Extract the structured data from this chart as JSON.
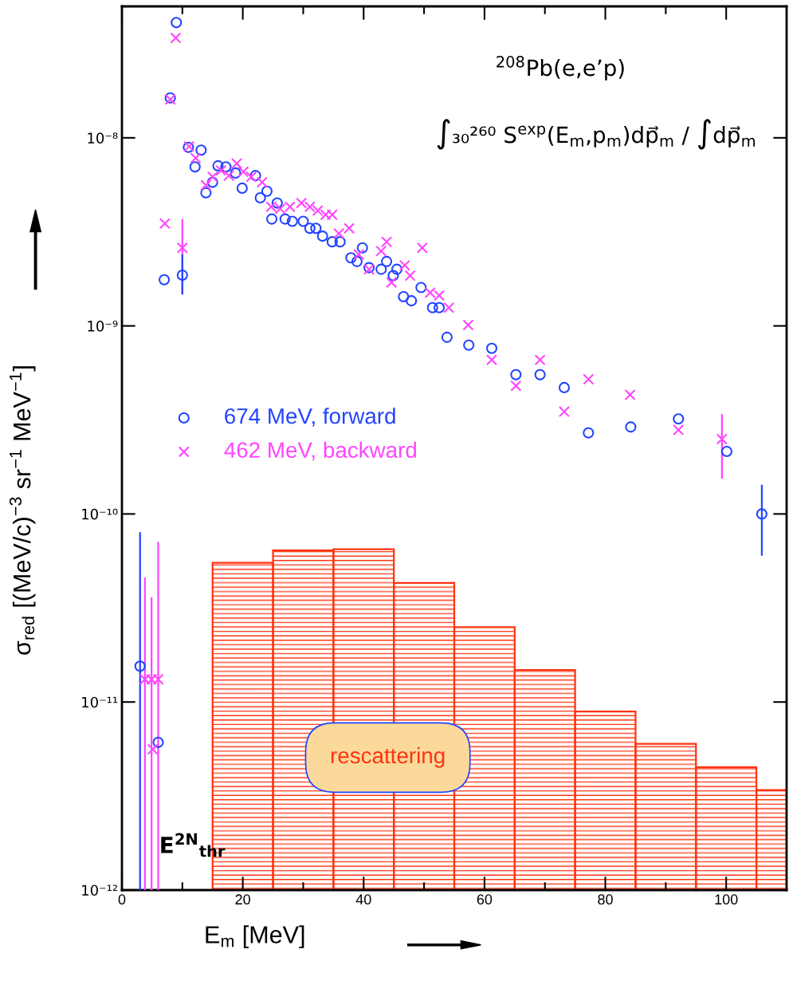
{
  "chart_data": {
    "type": "scatter",
    "xlabel": "E$_{m}$ [MeV]",
    "ylabel": "σ$_{red}$ [(MeV/c)$^{−3}$ sr$^{−1}$ MeV$^{−1}$]",
    "annotations": [
      "$^{208}$Pb(e,e’p)",
      "∫₃₀²⁶⁰ S$^{exp}$(E$_{m}$,p$_{m}$)dp⃗$_{m}$ / ∫dp⃗$_{m}$",
      "E$^{2N}$$_{thr}$"
    ],
    "log": "y",
    "grid": false,
    "legend": "left",
    "xlim": [
      0,
      110
    ],
    "xticks": [
      0,
      20,
      40,
      60,
      80,
      100
    ],
    "ylim": [
      1e-12,
      5e-08
    ],
    "yticks": [
      {
        "value": 1e-12,
        "label": "10⁻¹²"
      },
      {
        "value": 1e-11,
        "label": "10⁻¹¹"
      },
      {
        "value": 1e-10,
        "label": "10⁻¹⁰"
      },
      {
        "value": 1e-09,
        "label": "10⁻⁹"
      },
      {
        "value": 1e-08,
        "label": "10⁻⁸"
      }
    ],
    "series": [
      {
        "type": "histogram",
        "name": "rescattering",
        "color": "#ff3311",
        "bins": [
          15,
          25,
          35,
          45,
          55,
          65,
          75,
          85,
          95,
          105,
          110
        ],
        "values": [
          5.5e-11,
          6.4e-11,
          6.5e-11,
          4.3e-11,
          2.5e-11,
          1.48e-11,
          8.9e-12,
          6e-12,
          4.5e-12,
          3.4e-12
        ]
      },
      {
        "name": "674 MeV, forward",
        "color": "#2244ff",
        "marker": "circle",
        "x": [
          3.0,
          6.0,
          7.0,
          8.0,
          9.0,
          10.0,
          11.0,
          12.1,
          13.1,
          13.9,
          15.0,
          15.9,
          17.2,
          18.8,
          19.9,
          22.1,
          22.9,
          24.0,
          24.8,
          25.7,
          27.0,
          28.2,
          30.0,
          31.1,
          32.1,
          33.2,
          34.8,
          36.1,
          37.9,
          38.9,
          39.8,
          40.9,
          42.9,
          43.8,
          44.9,
          45.5,
          46.6,
          47.9,
          49.5,
          51.4,
          52.5,
          53.8,
          57.4,
          61.2,
          65.2,
          69.2,
          73.2,
          77.2,
          84.2,
          92.1,
          100.1,
          105.9
        ],
        "values": [
          1.55e-11,
          6.1e-12,
          1.76e-09,
          1.63e-08,
          4.1e-08,
          1.86e-09,
          8.9e-09,
          7e-09,
          8.6e-09,
          5.1e-09,
          5.8e-09,
          7.1e-09,
          7e-09,
          6.5e-09,
          5.4e-09,
          6.3e-09,
          4.8e-09,
          5.2e-09,
          3.7e-09,
          4.5e-09,
          3.7e-09,
          3.6e-09,
          3.6e-09,
          3.3e-09,
          3.3e-09,
          3e-09,
          2.8e-09,
          2.8e-09,
          2.3e-09,
          2.2e-09,
          2.6e-09,
          2.04e-09,
          2e-09,
          2.2e-09,
          1.85e-09,
          2e-09,
          1.43e-09,
          1.36e-09,
          1.6e-09,
          1.25e-09,
          1.25e-09,
          8.7e-10,
          7.9e-10,
          7.6e-10,
          5.5e-10,
          5.5e-10,
          4.7e-10,
          2.7e-10,
          2.9e-10,
          3.2e-10,
          2.15e-10,
          1e-10
        ],
        "errors": [
          [
            1e-12,
            8e-11
          ],
          null,
          null,
          null,
          null,
          [
            1.47e-09,
            2.4e-09
          ],
          null,
          null,
          null,
          null,
          null,
          null,
          null,
          null,
          null,
          null,
          null,
          null,
          null,
          null,
          null,
          null,
          null,
          null,
          null,
          null,
          null,
          null,
          null,
          null,
          null,
          null,
          null,
          null,
          null,
          null,
          null,
          null,
          null,
          null,
          null,
          null,
          null,
          null,
          null,
          null,
          null,
          null,
          null,
          null,
          null,
          [
            6e-11,
            1.43e-10
          ]
        ]
      },
      {
        "name": "462 MeV, backward",
        "color": "#ff44ff",
        "marker": "cross",
        "x": [
          3.8,
          4.9,
          5.1,
          6.0,
          7.1,
          8.0,
          8.9,
          10.0,
          11.1,
          12.2,
          13.9,
          15.0,
          16.4,
          17.7,
          19.0,
          20.1,
          21.4,
          23.2,
          24.7,
          26.2,
          27.8,
          29.7,
          31.1,
          32.4,
          33.7,
          34.8,
          35.9,
          37.6,
          39.2,
          40.9,
          42.9,
          43.8,
          44.6,
          46.8,
          47.7,
          49.7,
          51.0,
          52.5,
          54.1,
          57.3,
          61.2,
          65.2,
          69.2,
          73.2,
          77.2,
          84.1,
          92.1,
          99.3
        ],
        "values": [
          1.32e-11,
          1.32e-11,
          5.6e-12,
          1.32e-11,
          3.5e-09,
          1.6e-08,
          3.4e-08,
          2.6e-09,
          9e-09,
          7.8e-09,
          5.6e-09,
          6.2e-09,
          6.7e-09,
          6.3e-09,
          7.3e-09,
          6.6e-09,
          6.2e-09,
          5.8e-09,
          4.3e-09,
          4.2e-09,
          4.3e-09,
          4.5e-09,
          4.3e-09,
          4.1e-09,
          3.9e-09,
          3.9e-09,
          3.1e-09,
          3.3e-09,
          2.4e-09,
          2e-09,
          2.5e-09,
          2.8e-09,
          1.7e-09,
          2.1e-09,
          1.85e-09,
          2.6e-09,
          1.5e-09,
          1.45e-09,
          1.25e-09,
          1.01e-09,
          6.6e-10,
          4.8e-10,
          6.6e-10,
          3.5e-10,
          5.2e-10,
          4.3e-10,
          2.8e-10,
          2.5e-10
        ],
        "errors": [
          [
            1e-12,
            4.6e-11
          ],
          [
            1e-12,
            3.6e-11
          ],
          null,
          [
            1e-12,
            7.1e-11
          ],
          null,
          null,
          null,
          [
            1.47e-09,
            3.7e-09
          ],
          null,
          null,
          null,
          null,
          null,
          null,
          null,
          null,
          null,
          null,
          null,
          null,
          null,
          null,
          null,
          null,
          null,
          null,
          null,
          null,
          null,
          null,
          null,
          null,
          null,
          null,
          null,
          null,
          null,
          null,
          null,
          null,
          null,
          null,
          null,
          null,
          null,
          null,
          null,
          [
            1.54e-10,
            3.4e-10
          ]
        ]
      }
    ]
  }
}
